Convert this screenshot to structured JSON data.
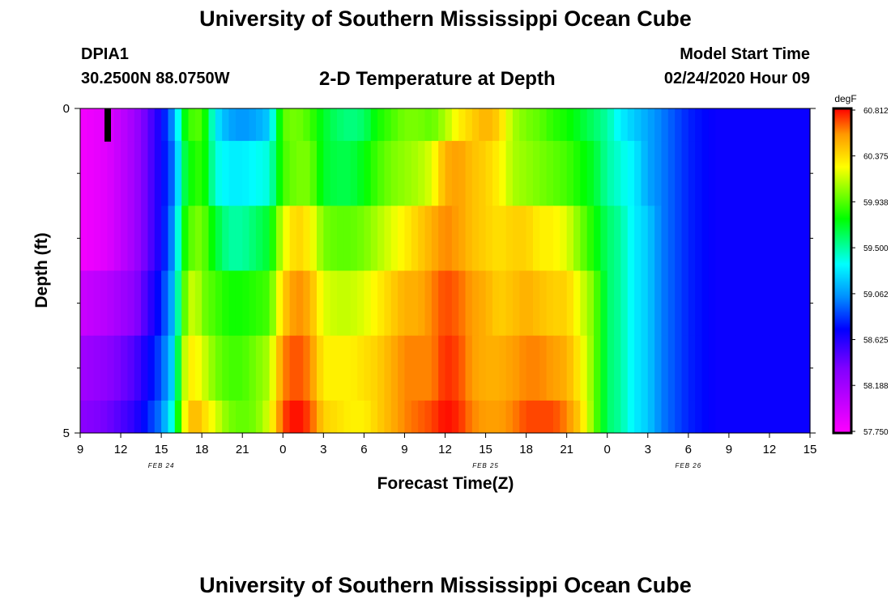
{
  "header": {
    "title": "University of Southern Mississippi Ocean Cube",
    "station_id": "DPIA1",
    "coordinates": "30.2500N 88.0750W",
    "plot_title": "2-D Temperature at Depth",
    "model_label": "Model Start Time",
    "model_start": "02/24/2020 Hour 09"
  },
  "footer": {
    "title": "University of Southern Mississippi Ocean Cube"
  },
  "chart_data": {
    "type": "heatmap",
    "title": "2-D Temperature at Depth",
    "xlabel": "Forecast Time(Z)",
    "ylabel": "Depth (ft)",
    "x_unit": "hours from 02/24/2020 09Z",
    "xlim": [
      0,
      54
    ],
    "ylim": [
      0,
      5
    ],
    "x_tick_labels": [
      "9",
      "12",
      "15",
      "18",
      "21",
      "0",
      "3",
      "6",
      "9",
      "12",
      "15",
      "18",
      "21",
      "0",
      "3",
      "6",
      "9",
      "12",
      "15"
    ],
    "date_labels": [
      "FEB 24",
      "FEB 25",
      "FEB 26"
    ],
    "y_tick_labels": [
      "0",
      "5"
    ],
    "colorbar": {
      "unit": "degF",
      "min": 57.75,
      "max": 60.812,
      "ticks": [
        "60.812",
        "60.375",
        "59.938",
        "59.500",
        "59.062",
        "58.625",
        "58.188",
        "57.750"
      ]
    },
    "depth_bins": [
      "0-0.5",
      "0.5-1.5",
      "1.5-2.5",
      "2.5-3.5",
      "3.5-4.5",
      "4.5-5"
    ],
    "hours": [
      0,
      2,
      4,
      6,
      7,
      7.5,
      8,
      8.5,
      9,
      10,
      11,
      12,
      13,
      14,
      15,
      16,
      17,
      18,
      19,
      20,
      21,
      22,
      23,
      24,
      25,
      26,
      27,
      28,
      29,
      30,
      31,
      32,
      33,
      34,
      35,
      36,
      37,
      38,
      39,
      40,
      41,
      42,
      43,
      44,
      45,
      46,
      47,
      48,
      49,
      50,
      51,
      52,
      53,
      54
    ],
    "values": [
      [
        57.8,
        57.9,
        58.2,
        58.7,
        59.1,
        59.6,
        59.9,
        59.9,
        59.95,
        59.3,
        59.1,
        59.05,
        59.1,
        59.2,
        59.95,
        60.0,
        59.9,
        59.7,
        59.6,
        59.55,
        59.6,
        59.8,
        59.9,
        60.0,
        60.0,
        59.95,
        60.1,
        60.3,
        60.4,
        60.5,
        60.4,
        60.1,
        60.0,
        59.95,
        59.85,
        59.8,
        59.7,
        59.6,
        59.5,
        59.3,
        59.2,
        59.1,
        59.0,
        58.9,
        58.8,
        58.75,
        58.7,
        58.7,
        58.7,
        58.7,
        58.7,
        58.7,
        58.7,
        58.7
      ],
      [
        57.8,
        57.9,
        58.2,
        58.7,
        59.0,
        59.5,
        59.8,
        59.8,
        59.9,
        59.4,
        59.3,
        59.3,
        59.35,
        59.4,
        59.9,
        60.0,
        60.0,
        59.7,
        59.65,
        59.65,
        59.75,
        59.9,
        60.0,
        60.05,
        60.1,
        60.2,
        60.5,
        60.55,
        60.45,
        60.4,
        60.3,
        60.1,
        60.05,
        60.0,
        59.95,
        59.9,
        59.8,
        59.7,
        59.5,
        59.4,
        59.3,
        59.1,
        59.0,
        58.9,
        58.8,
        58.75,
        58.7,
        58.7,
        58.7,
        58.7,
        58.7,
        58.7,
        58.7,
        58.7
      ],
      [
        57.8,
        57.9,
        58.2,
        58.7,
        59.1,
        59.7,
        59.9,
        60.0,
        60.0,
        59.7,
        59.5,
        59.5,
        59.6,
        59.7,
        60.2,
        60.4,
        60.3,
        60.0,
        59.95,
        59.95,
        60.0,
        60.1,
        60.2,
        60.3,
        60.4,
        60.5,
        60.6,
        60.55,
        60.45,
        60.4,
        60.35,
        60.4,
        60.4,
        60.3,
        60.3,
        60.2,
        60.0,
        59.8,
        59.6,
        59.5,
        59.3,
        59.2,
        59.0,
        58.9,
        58.8,
        58.75,
        58.7,
        58.7,
        58.7,
        58.7,
        58.7,
        58.7,
        58.7,
        58.7
      ],
      [
        58.0,
        58.1,
        58.3,
        58.8,
        59.2,
        59.8,
        60.1,
        60.2,
        60.0,
        59.9,
        59.8,
        59.8,
        59.85,
        59.9,
        60.4,
        60.6,
        60.5,
        60.2,
        60.15,
        60.15,
        60.2,
        60.3,
        60.4,
        60.5,
        60.5,
        60.6,
        60.7,
        60.65,
        60.55,
        60.5,
        60.4,
        60.45,
        60.5,
        60.45,
        60.4,
        60.4,
        60.2,
        60.0,
        59.6,
        59.5,
        59.3,
        59.2,
        59.0,
        58.9,
        58.8,
        58.75,
        58.7,
        58.7,
        58.7,
        58.7,
        58.7,
        58.7,
        58.7,
        58.7
      ],
      [
        58.2,
        58.3,
        58.5,
        58.9,
        59.3,
        60.0,
        60.3,
        60.3,
        60.2,
        60.0,
        59.9,
        59.9,
        60.0,
        60.1,
        60.6,
        60.7,
        60.6,
        60.3,
        60.3,
        60.3,
        60.35,
        60.4,
        60.5,
        60.6,
        60.6,
        60.6,
        60.75,
        60.7,
        60.55,
        60.5,
        60.5,
        60.55,
        60.6,
        60.6,
        60.55,
        60.5,
        60.3,
        60.0,
        59.6,
        59.5,
        59.3,
        59.2,
        59.0,
        58.9,
        58.8,
        58.75,
        58.7,
        58.7,
        58.7,
        58.7,
        58.7,
        58.7,
        58.7,
        58.7
      ],
      [
        58.3,
        58.4,
        58.6,
        59.0,
        59.5,
        60.1,
        60.4,
        60.5,
        60.4,
        60.2,
        60.0,
        59.95,
        60.0,
        60.2,
        60.7,
        60.81,
        60.7,
        60.4,
        60.35,
        60.3,
        60.3,
        60.4,
        60.5,
        60.6,
        60.65,
        60.7,
        60.8,
        60.75,
        60.6,
        60.55,
        60.55,
        60.6,
        60.7,
        60.7,
        60.7,
        60.6,
        60.4,
        60.0,
        59.6,
        59.5,
        59.3,
        59.2,
        59.0,
        58.9,
        58.8,
        58.75,
        58.7,
        58.7,
        58.7,
        58.7,
        58.7,
        58.7,
        58.7,
        58.7
      ]
    ]
  }
}
